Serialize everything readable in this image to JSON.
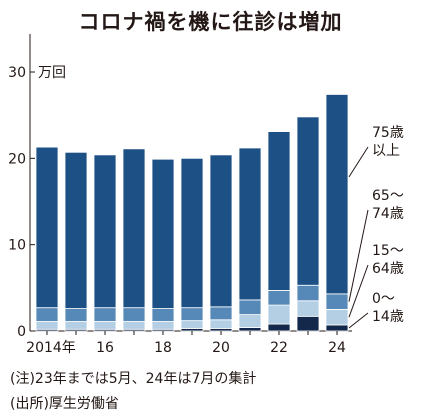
{
  "chart_data": {
    "type": "bar",
    "stacked": true,
    "title": "コロナ禍を機に往診は増加",
    "unit": "万回",
    "categories": [
      "2014",
      "2015",
      "2016",
      "2017",
      "2018",
      "2019",
      "2020",
      "2021",
      "2022",
      "2023",
      "2024"
    ],
    "x_tick_labels": [
      "2014年",
      "",
      "16",
      "",
      "18",
      "",
      "20",
      "",
      "22",
      "",
      "24"
    ],
    "y_ticks": [
      "0",
      "10",
      "20",
      "30"
    ],
    "ylim": [
      0,
      30
    ],
    "grid": false,
    "series": [
      {
        "name": "0〜14歳",
        "label_lines": [
          "0〜",
          "14歳"
        ],
        "color": "#14284c",
        "values": [
          0.2,
          0.2,
          0.2,
          0.2,
          0.2,
          0.3,
          0.3,
          0.4,
          0.8,
          1.7,
          0.7
        ]
      },
      {
        "name": "15〜64歳",
        "label_lines": [
          "15〜",
          "64歳"
        ],
        "color": "#b4cfe4",
        "values": [
          0.9,
          0.9,
          0.9,
          0.9,
          0.9,
          0.9,
          1.0,
          1.5,
          2.2,
          1.8,
          1.8
        ]
      },
      {
        "name": "65〜74歳",
        "label_lines": [
          "65〜",
          "74歳"
        ],
        "color": "#5689b7",
        "values": [
          1.6,
          1.5,
          1.6,
          1.6,
          1.5,
          1.5,
          1.5,
          1.7,
          1.7,
          1.8,
          1.8
        ]
      },
      {
        "name": "75歳以上",
        "label_lines": [
          "75歳",
          "以上"
        ],
        "color": "#1d5186",
        "values": [
          18.6,
          18.1,
          17.7,
          18.4,
          17.3,
          17.3,
          17.6,
          17.6,
          18.4,
          19.5,
          23.1
        ]
      }
    ]
  },
  "notes": {
    "note1": "(注)23年までは5月、24年は7月の集計",
    "source": "(出所)厚生労働省"
  }
}
